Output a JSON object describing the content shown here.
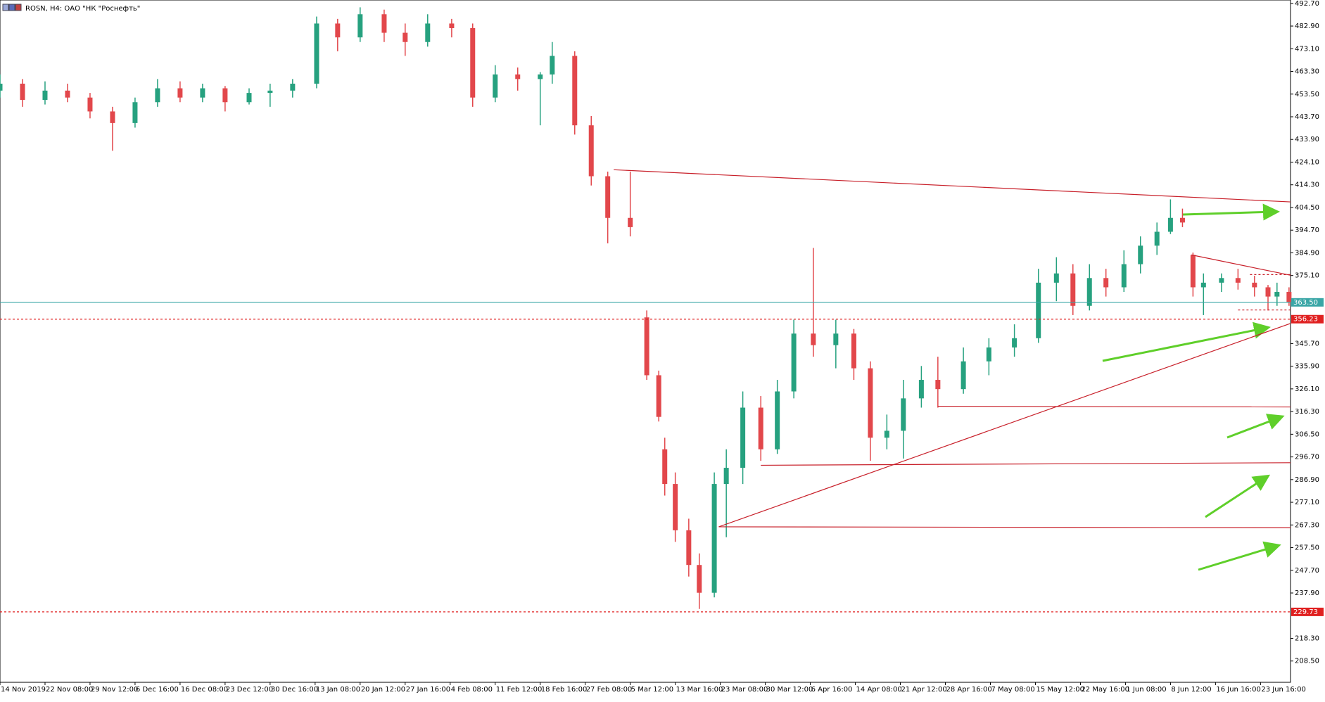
{
  "chart_data": {
    "type": "candlestick",
    "title": "ROSN, H4:  ОАО \"НК \"Роснефть\"",
    "xlim": [
      0,
      860
    ],
    "ylim": [
      199.3,
      494.16
    ],
    "up_color": "#26a17f",
    "down_color": "#e2474b",
    "xticks": [
      {
        "value": 0,
        "label": "14 Nov 2019"
      },
      {
        "value": 30,
        "label": "22 Nov 08:00"
      },
      {
        "value": 60,
        "label": "29 Nov 12:00"
      },
      {
        "value": 90,
        "label": "6 Dec 16:00"
      },
      {
        "value": 120,
        "label": "16 Dec 08:00"
      },
      {
        "value": 150,
        "label": "23 Dec 12:00"
      },
      {
        "value": 180,
        "label": "30 Dec 16:00"
      },
      {
        "value": 210,
        "label": "13 Jan 08:00"
      },
      {
        "value": 240,
        "label": "20 Jan 12:00"
      },
      {
        "value": 270,
        "label": "27 Jan 16:00"
      },
      {
        "value": 300,
        "label": "4 Feb 08:00"
      },
      {
        "value": 330,
        "label": "11 Feb 12:00"
      },
      {
        "value": 360,
        "label": "18 Feb 16:00"
      },
      {
        "value": 390,
        "label": "27 Feb 08:00"
      },
      {
        "value": 420,
        "label": "5 Mar 12:00"
      },
      {
        "value": 450,
        "label": "13 Mar 16:00"
      },
      {
        "value": 480,
        "label": "23 Mar 08:00"
      },
      {
        "value": 510,
        "label": "30 Mar 12:00"
      },
      {
        "value": 540,
        "label": "6 Apr 16:00"
      },
      {
        "value": 570,
        "label": "14 Apr 08:00"
      },
      {
        "value": 600,
        "label": "21 Apr 12:00"
      },
      {
        "value": 630,
        "label": "28 Apr 16:00"
      },
      {
        "value": 660,
        "label": "7 May 08:00"
      },
      {
        "value": 690,
        "label": "15 May 12:00"
      },
      {
        "value": 720,
        "label": "22 May 16:00"
      },
      {
        "value": 750,
        "label": "1 Jun 08:00"
      },
      {
        "value": 780,
        "label": "8 Jun 12:00"
      },
      {
        "value": 810,
        "label": "16 Jun 16:00"
      },
      {
        "value": 840,
        "label": "23 Jun 16:00"
      }
    ],
    "yticks": [
      {
        "value": 492.7,
        "label": "492.70"
      },
      {
        "value": 482.9,
        "label": "482.90"
      },
      {
        "value": 473.1,
        "label": "473.10"
      },
      {
        "value": 463.3,
        "label": "463.30"
      },
      {
        "value": 453.5,
        "label": "453.50"
      },
      {
        "value": 443.7,
        "label": "443.70"
      },
      {
        "value": 433.9,
        "label": "433.90"
      },
      {
        "value": 424.1,
        "label": "424.10"
      },
      {
        "value": 414.3,
        "label": "414.30"
      },
      {
        "value": 404.5,
        "label": "404.50"
      },
      {
        "value": 394.7,
        "label": "394.70"
      },
      {
        "value": 384.9,
        "label": "384.90"
      },
      {
        "value": 375.1,
        "label": "375.10"
      },
      {
        "value": 345.7,
        "label": "345.70"
      },
      {
        "value": 335.9,
        "label": "335.90"
      },
      {
        "value": 326.1,
        "label": "326.10"
      },
      {
        "value": 316.3,
        "label": "316.30"
      },
      {
        "value": 306.5,
        "label": "306.50"
      },
      {
        "value": 296.7,
        "label": "296.70"
      },
      {
        "value": 286.9,
        "label": "286.90"
      },
      {
        "value": 277.1,
        "label": "277.10"
      },
      {
        "value": 267.3,
        "label": "267.30"
      },
      {
        "value": 257.5,
        "label": "257.50"
      },
      {
        "value": 247.7,
        "label": "247.70"
      },
      {
        "value": 237.9,
        "label": "237.90"
      },
      {
        "value": 218.3,
        "label": "218.30"
      },
      {
        "value": 208.5,
        "label": "208.50"
      }
    ],
    "x": [
      0,
      15,
      30,
      45,
      60,
      75,
      90,
      105,
      120,
      135,
      150,
      166,
      180,
      195,
      211,
      225,
      240,
      256,
      270,
      285,
      301,
      315,
      330,
      345,
      360,
      368,
      383,
      394,
      405,
      420,
      431,
      439,
      443,
      450,
      459,
      466,
      476,
      484,
      495,
      507,
      518,
      529,
      542,
      557,
      569,
      580,
      591,
      602,
      614,
      625,
      642,
      659,
      676,
      692,
      704,
      715,
      726,
      737,
      749,
      760,
      771,
      780,
      788,
      795,
      802,
      814,
      825,
      836,
      845,
      851,
      859
    ],
    "open": [
      455,
      458,
      451,
      455,
      452,
      446,
      441,
      450,
      456,
      452,
      456,
      450,
      454,
      455,
      458,
      484,
      478,
      488,
      480,
      476,
      484,
      482,
      452,
      462,
      460,
      462,
      470,
      440,
      418,
      400,
      357,
      332,
      300,
      285,
      265,
      250,
      238,
      285,
      292,
      318,
      300,
      325,
      350,
      345,
      350,
      335,
      305,
      308,
      322,
      330,
      326,
      338,
      344,
      348,
      372,
      376,
      362,
      374,
      370,
      380,
      388,
      394,
      400,
      384,
      370,
      372,
      374,
      372,
      370,
      366,
      368
    ],
    "high": [
      462,
      460,
      459,
      458,
      454,
      448,
      452,
      460,
      459,
      458,
      457,
      456,
      458,
      460,
      487,
      486,
      491,
      490,
      484,
      488,
      486,
      484,
      466,
      465,
      463,
      476,
      472,
      444,
      420,
      420,
      360,
      334,
      305,
      290,
      270,
      255,
      290,
      300,
      325,
      323,
      330,
      356,
      387,
      356,
      352,
      338,
      315,
      330,
      336,
      340,
      344,
      348,
      354,
      378,
      383,
      380,
      380,
      378,
      386,
      392,
      398,
      408,
      404,
      385,
      376,
      376,
      378,
      375,
      371,
      372,
      370
    ],
    "low": [
      452,
      448,
      449,
      450,
      443,
      429,
      439,
      448,
      450,
      450,
      446,
      449,
      448,
      452,
      456,
      472,
      476,
      476,
      470,
      474,
      478,
      448,
      450,
      455,
      440,
      458,
      436,
      414,
      389,
      392,
      330,
      312,
      280,
      260,
      245,
      231,
      236,
      262,
      285,
      295,
      298,
      322,
      340,
      335,
      330,
      295,
      300,
      296,
      318,
      318,
      324,
      332,
      340,
      346,
      364,
      358,
      360,
      366,
      368,
      376,
      384,
      393,
      396,
      366,
      358,
      368,
      369,
      366,
      360,
      362,
      362
    ],
    "close": [
      458,
      451,
      455,
      452,
      446,
      441,
      450,
      456,
      452,
      456,
      450,
      454,
      455,
      458,
      484,
      478,
      488,
      480,
      476,
      484,
      482,
      452,
      462,
      460,
      462,
      470,
      440,
      418,
      400,
      396,
      332,
      314,
      285,
      265,
      250,
      238,
      285,
      292,
      318,
      300,
      325,
      350,
      345,
      350,
      335,
      305,
      308,
      322,
      330,
      326,
      338,
      344,
      348,
      372,
      376,
      362,
      374,
      370,
      380,
      388,
      394,
      400,
      398,
      370,
      372,
      374,
      372,
      370,
      366,
      368,
      363.5
    ],
    "levels": [
      {
        "value": 363.5,
        "label": "363.50",
        "color": "#3aa6a6",
        "dashed": false
      },
      {
        "value": 356.23,
        "label": "356.23",
        "color": "#e02020",
        "dashed": true
      },
      {
        "value": 229.73,
        "label": "229.73",
        "color": "#e02020",
        "dashed": true
      }
    ],
    "lines": [
      {
        "x": [
          409,
          860
        ],
        "y": [
          420.8,
          406.9
        ],
        "color": "#c8202a",
        "dashed": false
      },
      {
        "x": [
          794,
          860
        ],
        "y": [
          384.0,
          375.2
        ],
        "color": "#c8202a",
        "dashed": false
      },
      {
        "x": [
          825,
          860
        ],
        "y": [
          360.2,
          360.2
        ],
        "color": "#c8202a",
        "dashed": true
      },
      {
        "x": [
          833,
          860
        ],
        "y": [
          375.5,
          375.5
        ],
        "color": "#c8202a",
        "dashed": true
      },
      {
        "x": [
          479,
          860
        ],
        "y": [
          266.5,
          354.4
        ],
        "color": "#c8202a",
        "dashed": false
      },
      {
        "x": [
          625,
          860
        ],
        "y": [
          318.6,
          318.3
        ],
        "color": "#c8202a",
        "dashed": false
      },
      {
        "x": [
          507,
          860
        ],
        "y": [
          293.1,
          294.2
        ],
        "color": "#c8202a",
        "dashed": false
      },
      {
        "x": [
          479,
          860
        ],
        "y": [
          266.5,
          266.1
        ],
        "color": "#c8202a",
        "dashed": false
      }
    ]
  }
}
